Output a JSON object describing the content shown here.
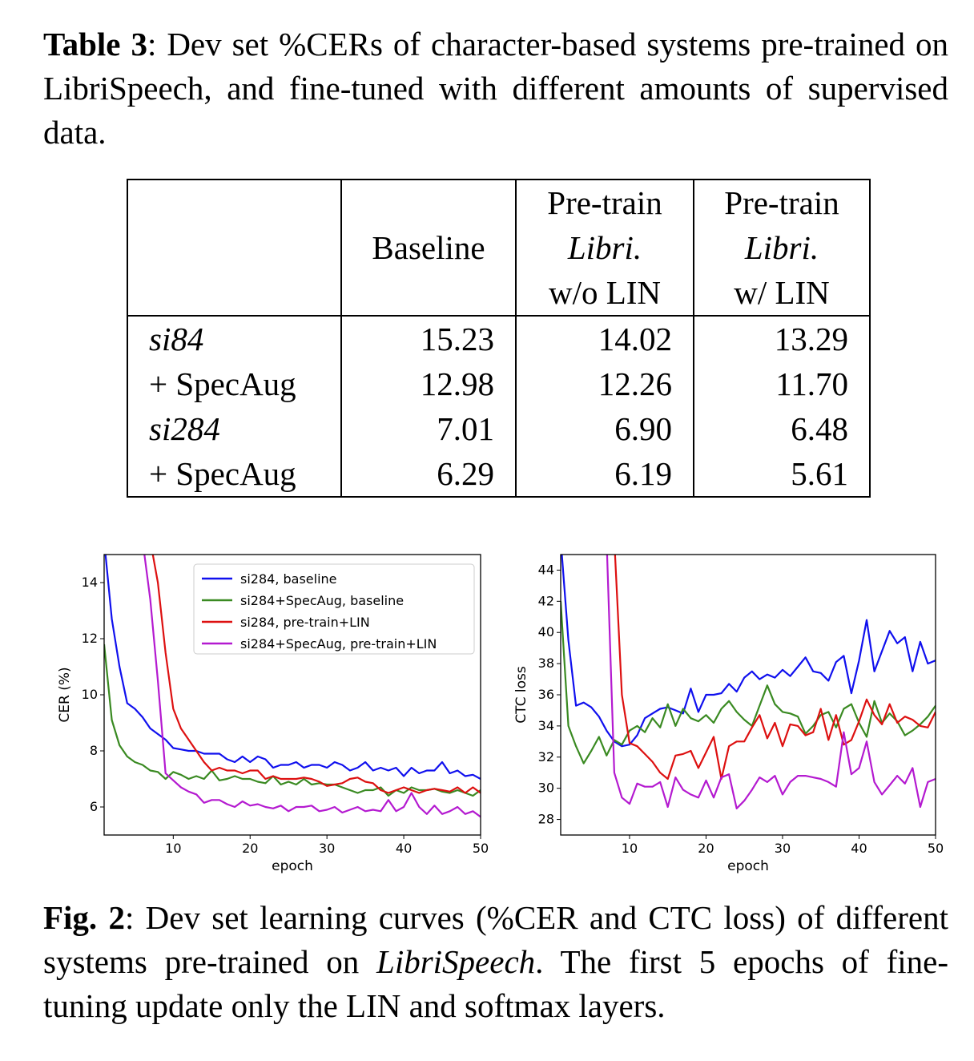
{
  "table_caption": {
    "label": "Table 3",
    "text": ":  Dev set %CERs of character-based systems pre-trained on LibriSpeech, and fine-tuned with different amounts of supervised data."
  },
  "table": {
    "headers": [
      [
        "",
        "",
        ""
      ],
      [
        "",
        "Baseline",
        ""
      ],
      [
        "Pre-train",
        "Libri.",
        "w/o LIN"
      ],
      [
        "Pre-train",
        "Libri.",
        "w/ LIN"
      ]
    ],
    "rows": [
      {
        "label": "si84",
        "italic": true,
        "values": [
          "15.23",
          "14.02",
          "13.29"
        ]
      },
      {
        "label": "+ SpecAug",
        "italic": false,
        "values": [
          "12.98",
          "12.26",
          "11.70"
        ]
      },
      {
        "label": "si284",
        "italic": true,
        "values": [
          "7.01",
          "6.90",
          "6.48"
        ]
      },
      {
        "label": "+ SpecAug",
        "italic": false,
        "values": [
          "6.29",
          "6.19",
          "5.61"
        ]
      }
    ]
  },
  "fig_caption": {
    "label": "Fig. 2",
    "text_before": ": Dev set learning curves (%CER and CTC loss) of different systems pre-trained on ",
    "italic": "LibriSpeech",
    "text_after": ". The first 5 epochs of fine-tuning update only the LIN and softmax layers."
  },
  "colors": {
    "si284, baseline": "#1010ee",
    "si284+SpecAug, baseline": "#3a8a22",
    "si284, pre-train+LIN": "#dd1010",
    "si284+SpecAug, pre-train+LIN": "#b41ad0"
  },
  "chart_data": [
    {
      "type": "line",
      "xlabel": "epoch",
      "ylabel": "CER (%)",
      "xlim": [
        1,
        50
      ],
      "ylim": [
        5,
        15
      ],
      "xticks": [
        10,
        20,
        30,
        40,
        50
      ],
      "yticks": [
        6,
        8,
        10,
        12,
        14
      ],
      "legend": "top-right",
      "series": [
        {
          "name": "si284, baseline",
          "x": [
            1,
            2,
            3,
            4,
            5,
            6,
            7,
            8,
            9,
            10,
            11,
            12,
            13,
            14,
            15,
            16,
            17,
            18,
            19,
            20,
            21,
            22,
            23,
            24,
            25,
            26,
            27,
            28,
            29,
            30,
            31,
            32,
            33,
            34,
            35,
            36,
            37,
            38,
            39,
            40,
            41,
            42,
            43,
            44,
            45,
            46,
            47,
            48,
            49,
            50
          ],
          "y": [
            15.5,
            12.7,
            11.0,
            9.7,
            9.5,
            9.2,
            8.8,
            8.6,
            8.4,
            8.1,
            8.05,
            8.0,
            8.0,
            7.9,
            7.9,
            7.9,
            7.7,
            7.6,
            7.8,
            7.6,
            7.8,
            7.7,
            7.4,
            7.5,
            7.5,
            7.6,
            7.4,
            7.5,
            7.5,
            7.4,
            7.6,
            7.5,
            7.3,
            7.4,
            7.6,
            7.3,
            7.4,
            7.3,
            7.4,
            7.1,
            7.4,
            7.2,
            7.3,
            7.3,
            7.6,
            7.2,
            7.3,
            7.1,
            7.15,
            7.0
          ]
        },
        {
          "name": "si284+SpecAug, baseline",
          "x": [
            1,
            2,
            3,
            4,
            5,
            6,
            7,
            8,
            9,
            10,
            11,
            12,
            13,
            14,
            15,
            16,
            17,
            18,
            19,
            20,
            21,
            22,
            23,
            24,
            25,
            26,
            27,
            28,
            29,
            30,
            31,
            32,
            33,
            34,
            35,
            36,
            37,
            38,
            39,
            40,
            41,
            42,
            43,
            44,
            45,
            46,
            47,
            48,
            49,
            50
          ],
          "y": [
            11.8,
            9.1,
            8.2,
            7.8,
            7.6,
            7.5,
            7.3,
            7.25,
            7.0,
            7.25,
            7.15,
            7.0,
            7.1,
            7.0,
            7.3,
            6.95,
            7.0,
            7.1,
            7.0,
            7.0,
            6.9,
            6.85,
            7.1,
            6.8,
            6.9,
            6.8,
            7.0,
            6.8,
            6.85,
            6.8,
            6.8,
            6.7,
            6.6,
            6.5,
            6.6,
            6.6,
            6.7,
            6.4,
            6.6,
            6.5,
            6.7,
            6.6,
            6.6,
            6.65,
            6.55,
            6.5,
            6.6,
            6.5,
            6.4,
            6.6
          ]
        },
        {
          "name": "si284, pre-train+LIN",
          "x": [
            7,
            8,
            9,
            10,
            11,
            12,
            13,
            14,
            15,
            16,
            17,
            18,
            19,
            20,
            21,
            22,
            23,
            24,
            25,
            26,
            27,
            28,
            29,
            30,
            31,
            32,
            33,
            34,
            35,
            36,
            37,
            38,
            39,
            40,
            41,
            42,
            43,
            44,
            45,
            46,
            47,
            48,
            49,
            50
          ],
          "y": [
            15.5,
            14.0,
            11.5,
            9.5,
            8.8,
            8.4,
            8.0,
            7.6,
            7.3,
            7.4,
            7.3,
            7.3,
            7.2,
            7.3,
            7.3,
            7.0,
            7.1,
            7.0,
            7.0,
            7.0,
            7.05,
            7.0,
            6.9,
            6.75,
            6.8,
            6.85,
            7.0,
            7.05,
            6.9,
            6.85,
            6.6,
            6.5,
            6.6,
            6.7,
            6.6,
            6.5,
            6.6,
            6.65,
            6.6,
            6.55,
            6.7,
            6.5,
            6.7,
            6.5
          ]
        },
        {
          "name": "si284+SpecAug, pre-train+LIN",
          "x": [
            6,
            7,
            8,
            9,
            10,
            11,
            12,
            13,
            14,
            15,
            16,
            17,
            18,
            19,
            20,
            21,
            22,
            23,
            24,
            25,
            26,
            27,
            28,
            29,
            30,
            31,
            32,
            33,
            34,
            35,
            36,
            37,
            38,
            39,
            40,
            41,
            42,
            43,
            44,
            45,
            46,
            47,
            48,
            49,
            50
          ],
          "y": [
            15.5,
            13.4,
            10.5,
            7.2,
            6.95,
            6.7,
            6.55,
            6.45,
            6.15,
            6.25,
            6.25,
            6.1,
            6.0,
            6.2,
            6.05,
            6.1,
            6.0,
            5.95,
            6.05,
            5.85,
            6.0,
            6.0,
            6.05,
            5.85,
            5.9,
            6.0,
            5.8,
            5.9,
            6.0,
            5.85,
            5.9,
            5.85,
            6.25,
            5.85,
            6.0,
            6.5,
            6.0,
            5.75,
            6.05,
            5.75,
            5.85,
            6.0,
            5.75,
            5.85,
            5.65
          ]
        }
      ]
    },
    {
      "type": "line",
      "xlabel": "epoch",
      "ylabel": "CTC loss",
      "xlim": [
        1,
        50
      ],
      "ylim": [
        27,
        45
      ],
      "xticks": [
        10,
        20,
        30,
        40,
        50
      ],
      "yticks": [
        28,
        30,
        32,
        34,
        36,
        38,
        40,
        42,
        44
      ],
      "series": [
        {
          "name": "si284, baseline",
          "x": [
            1,
            2,
            3,
            4,
            5,
            6,
            7,
            8,
            9,
            10,
            11,
            12,
            13,
            14,
            15,
            16,
            17,
            18,
            19,
            20,
            21,
            22,
            23,
            24,
            25,
            26,
            27,
            28,
            29,
            30,
            31,
            32,
            33,
            34,
            35,
            36,
            37,
            38,
            39,
            40,
            41,
            42,
            43,
            44,
            45,
            46,
            47,
            48,
            49,
            50
          ],
          "y": [
            46,
            39.5,
            35.3,
            35.5,
            35.2,
            34.6,
            33.7,
            33.0,
            32.7,
            32.8,
            33.4,
            34.5,
            34.8,
            35.1,
            35.2,
            35.0,
            34.8,
            36.4,
            34.9,
            36.0,
            36.0,
            36.1,
            36.7,
            36.2,
            37.1,
            37.5,
            37.0,
            37.3,
            37.1,
            37.6,
            37.2,
            37.8,
            38.4,
            37.5,
            37.4,
            36.9,
            38.1,
            38.5,
            36.1,
            38.2,
            40.8,
            37.5,
            38.8,
            40.1,
            39.3,
            39.7,
            37.5,
            39.4,
            38.0,
            38.2
          ]
        },
        {
          "name": "si284+SpecAug, baseline",
          "x": [
            1,
            2,
            3,
            4,
            5,
            6,
            7,
            8,
            9,
            10,
            11,
            12,
            13,
            14,
            15,
            16,
            17,
            18,
            19,
            20,
            21,
            22,
            23,
            24,
            25,
            26,
            27,
            28,
            29,
            30,
            31,
            32,
            33,
            34,
            35,
            36,
            37,
            38,
            39,
            40,
            41,
            42,
            43,
            44,
            45,
            46,
            47,
            48,
            49,
            50
          ],
          "y": [
            42,
            34.0,
            32.7,
            31.6,
            32.4,
            33.3,
            32.1,
            33.1,
            32.8,
            33.7,
            34.0,
            33.6,
            34.5,
            33.9,
            35.4,
            34.0,
            35.1,
            34.5,
            34.3,
            34.7,
            34.2,
            35.1,
            35.6,
            34.9,
            34.4,
            34.0,
            35.3,
            36.6,
            35.4,
            34.9,
            34.8,
            34.6,
            33.5,
            34.0,
            34.7,
            34.9,
            33.9,
            35.1,
            35.4,
            34.2,
            33.3,
            35.6,
            34.2,
            34.8,
            34.3,
            33.4,
            33.7,
            34.1,
            34.6,
            35.3
          ]
        },
        {
          "name": "si284, pre-train+LIN",
          "x": [
            8,
            9,
            10,
            11,
            12,
            13,
            14,
            15,
            16,
            17,
            18,
            19,
            20,
            21,
            22,
            23,
            24,
            25,
            26,
            27,
            28,
            29,
            30,
            31,
            32,
            33,
            34,
            35,
            36,
            37,
            38,
            39,
            40,
            41,
            42,
            43,
            44,
            45,
            46,
            47,
            48,
            49,
            50
          ],
          "y": [
            46,
            36.0,
            32.9,
            32.7,
            32.2,
            31.7,
            31.0,
            30.6,
            32.1,
            32.2,
            32.4,
            31.3,
            32.3,
            33.3,
            30.6,
            32.7,
            33.0,
            33.0,
            33.9,
            34.7,
            33.2,
            34.2,
            32.7,
            34.1,
            34.0,
            33.4,
            33.6,
            35.1,
            33.1,
            34.7,
            32.8,
            33.1,
            34.3,
            35.7,
            34.7,
            34.1,
            35.4,
            34.2,
            34.6,
            34.4,
            34.0,
            33.9,
            34.9
          ]
        },
        {
          "name": "si284+SpecAug, pre-train+LIN",
          "x": [
            7,
            8,
            9,
            10,
            11,
            12,
            13,
            14,
            15,
            16,
            17,
            18,
            19,
            20,
            21,
            22,
            23,
            24,
            25,
            26,
            27,
            28,
            29,
            30,
            31,
            32,
            33,
            34,
            35,
            36,
            37,
            38,
            39,
            40,
            41,
            42,
            43,
            44,
            45,
            46,
            47,
            48,
            49,
            50
          ],
          "y": [
            46,
            31.0,
            29.4,
            29.0,
            30.3,
            30.1,
            30.1,
            30.4,
            28.8,
            30.7,
            29.9,
            29.6,
            29.4,
            30.5,
            29.4,
            30.7,
            30.9,
            28.7,
            29.2,
            29.9,
            30.7,
            30.4,
            30.8,
            29.6,
            30.4,
            30.8,
            30.8,
            30.7,
            30.6,
            30.4,
            30.1,
            33.6,
            30.9,
            31.3,
            33.0,
            30.4,
            29.6,
            30.2,
            30.8,
            30.3,
            31.3,
            28.8,
            30.4,
            30.6
          ]
        }
      ]
    }
  ]
}
